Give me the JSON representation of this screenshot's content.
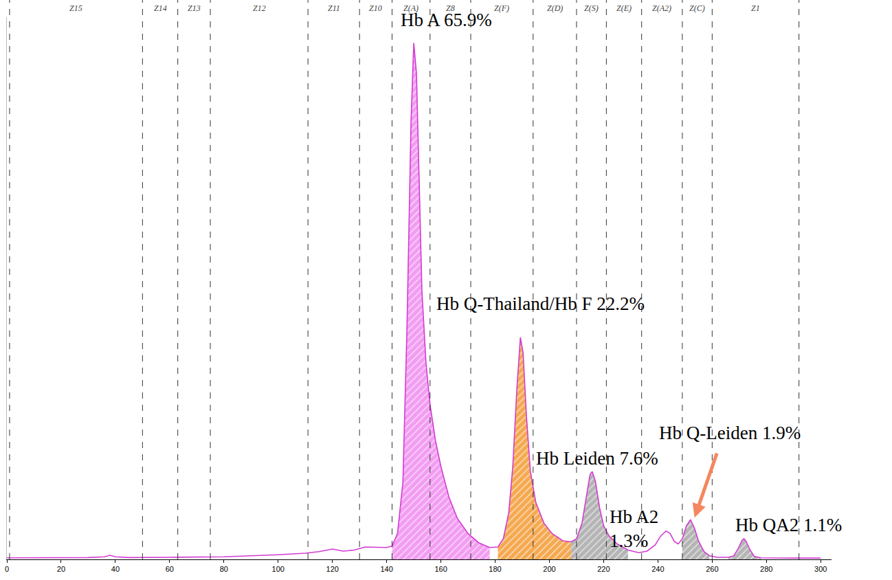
{
  "chart_data": {
    "type": "line",
    "color": "#d23cd2",
    "tick_labels": "x",
    "grid": false,
    "xlim": [
      0,
      304
    ],
    "xticks": [
      0,
      20,
      40,
      60,
      80,
      100,
      120,
      140,
      160,
      180,
      200,
      220,
      240,
      260,
      280,
      300
    ],
    "ylim": [
      0,
      105
    ],
    "x": [
      0,
      10,
      20,
      30,
      36,
      38,
      40,
      45,
      60,
      80,
      100,
      110,
      115,
      120,
      124,
      128,
      132,
      136,
      140,
      142,
      144,
      146,
      147.5,
      149,
      150,
      151,
      152,
      153,
      154.5,
      156,
      158,
      160,
      163,
      166,
      170,
      174,
      178,
      181,
      183,
      185,
      186.5,
      188,
      189.3,
      190.3,
      191.5,
      193,
      195,
      198,
      201,
      205,
      208,
      210,
      212,
      213.5,
      215,
      215.8,
      217,
      218.5,
      220,
      222,
      225,
      229,
      233,
      236,
      239,
      241,
      243,
      244.5,
      246,
      247.5,
      249,
      250.5,
      252,
      253.5,
      255,
      257,
      259,
      262,
      266,
      268,
      269.5,
      271,
      271.7,
      272.5,
      274,
      275.5,
      278,
      290,
      300
    ],
    "values": [
      0.3,
      0.3,
      0.3,
      0.35,
      0.5,
      0.8,
      0.5,
      0.35,
      0.4,
      0.5,
      0.9,
      1.2,
      1.5,
      2.0,
      1.6,
      1.8,
      2.4,
      2.4,
      2.3,
      2.6,
      5,
      15,
      45,
      85,
      100,
      94,
      72,
      52,
      38,
      30,
      23,
      18,
      12,
      8,
      5,
      3.2,
      2.3,
      2.4,
      4,
      9,
      18,
      33,
      43,
      40,
      28,
      17,
      11,
      7,
      5,
      3.6,
      3.4,
      4,
      7,
      12,
      16.5,
      17,
      15,
      10,
      6.5,
      4.5,
      3,
      1.8,
      1.3,
      1.6,
      2.8,
      4.5,
      5.5,
      5,
      3.5,
      3,
      4,
      6.5,
      7.7,
      6,
      3.5,
      1.5,
      0.7,
      0.4,
      0.4,
      0.7,
      2,
      3.7,
      4,
      3.5,
      1.8,
      0.6,
      0.3,
      0.25,
      0.25
    ],
    "peaks": [
      {
        "label": "Hb A 65.9%",
        "apex": 150,
        "from": 142,
        "to": 178,
        "color": "#f29cf2"
      },
      {
        "label": "Hb Q-Thailand/Hb F 22.2%",
        "apex": 189.3,
        "from": 181,
        "to": 208,
        "color": "#f5a84f"
      },
      {
        "label": "Hb Leiden 7.6%",
        "apex": 215.8,
        "from": 208,
        "to": 229,
        "color": "#b4b4b4"
      },
      {
        "label": "Hb A2\n1.3%",
        "apex": 243
      },
      {
        "label": "Hb Q-Leiden 1.9%",
        "apex": 252,
        "from": 249,
        "to": 259,
        "color": "#b4b4b4",
        "marker": "arrow"
      },
      {
        "label": "Hb QA2 1.1%",
        "apex": 271.7,
        "from": 266,
        "to": 278,
        "color": "#b4b4b4"
      }
    ],
    "zones": [
      {
        "name": "Z15",
        "from": 1,
        "to": 50
      },
      {
        "name": "Z14",
        "from": 50,
        "to": 63
      },
      {
        "name": "Z13",
        "from": 63,
        "to": 75
      },
      {
        "name": "Z12",
        "from": 75,
        "to": 111
      },
      {
        "name": "Z11",
        "from": 111,
        "to": 130
      },
      {
        "name": "Z10",
        "from": 130,
        "to": 142
      },
      {
        "name": "Z(A)",
        "from": 142,
        "to": 156
      },
      {
        "name": "Z8",
        "from": 156,
        "to": 171
      },
      {
        "name": "Z(F)",
        "from": 171,
        "to": 194
      },
      {
        "name": "Z(D)",
        "from": 194,
        "to": 210
      },
      {
        "name": "Z(S)",
        "from": 210,
        "to": 221
      },
      {
        "name": "Z(E)",
        "from": 221,
        "to": 234
      },
      {
        "name": "Z(A2)",
        "from": 234,
        "to": 249
      },
      {
        "name": "Z(C)",
        "from": 249,
        "to": 260
      },
      {
        "name": "Z1",
        "from": 260,
        "to": 292
      }
    ]
  }
}
